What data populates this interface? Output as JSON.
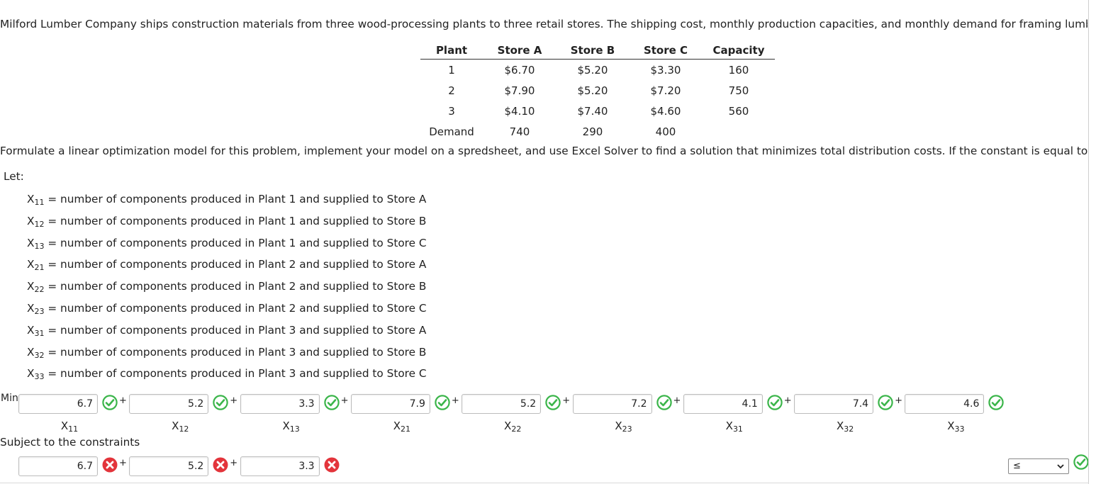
{
  "problem": {
    "intro": "Milford Lumber Company ships construction materials from three wood-processing plants to three retail stores. The shipping cost, monthly production capacities, and monthly demand for framing lumber",
    "instruction": "Formulate a linear optimization model for this problem, implement your model on a spredsheet, and use Excel Solver to find a solution that minimizes total distribution costs. If the constant is equal to or"
  },
  "table": {
    "headers": [
      "Plant",
      "Store A",
      "Store B",
      "Store C",
      "Capacity"
    ],
    "rows": [
      [
        "1",
        "$6.70",
        "$5.20",
        "$3.30",
        "160"
      ],
      [
        "2",
        "$7.90",
        "$5.20",
        "$7.20",
        "750"
      ],
      [
        "3",
        "$4.10",
        "$7.40",
        "$4.60",
        "560"
      ]
    ],
    "demand": [
      "Demand",
      "740",
      "290",
      "400",
      ""
    ]
  },
  "let_label": "Let:",
  "definitions": [
    {
      "var": "X",
      "sub": "11",
      "text": " = number of components produced in Plant 1 and supplied to Store A"
    },
    {
      "var": "X",
      "sub": "12",
      "text": " = number of components produced in Plant 1 and supplied to Store B"
    },
    {
      "var": "X",
      "sub": "13",
      "text": " = number of components produced in Plant 1 and supplied to Store C"
    },
    {
      "var": "X",
      "sub": "21",
      "text": " = number of components produced in Plant 2 and supplied to Store A"
    },
    {
      "var": "X",
      "sub": "22",
      "text": " = number of components produced in Plant 2 and supplied to Store B"
    },
    {
      "var": "X",
      "sub": "23",
      "text": " = number of components produced in Plant 2 and supplied to Store C"
    },
    {
      "var": "X",
      "sub": "31",
      "text": " = number of components produced in Plant 3 and supplied to Store A"
    },
    {
      "var": "X",
      "sub": "32",
      "text": " = number of components produced in Plant 3 and supplied to Store B"
    },
    {
      "var": "X",
      "sub": "33",
      "text": " = number of components produced in Plant 3 and supplied to Store C"
    }
  ],
  "objective": {
    "label": "Min",
    "plus": "+",
    "coefficients": [
      "6.7",
      "5.2",
      "3.3",
      "7.9",
      "5.2",
      "7.2",
      "4.1",
      "7.4",
      "4.6"
    ],
    "var_labels": [
      {
        "var": "X",
        "sub": "11"
      },
      {
        "var": "X",
        "sub": "12"
      },
      {
        "var": "X",
        "sub": "13"
      },
      {
        "var": "X",
        "sub": "21"
      },
      {
        "var": "X",
        "sub": "22"
      },
      {
        "var": "X",
        "sub": "23"
      },
      {
        "var": "X",
        "sub": "31"
      },
      {
        "var": "X",
        "sub": "32"
      },
      {
        "var": "X",
        "sub": "33"
      }
    ],
    "status": [
      "correct",
      "correct",
      "correct",
      "correct",
      "correct",
      "correct",
      "correct",
      "correct",
      "correct"
    ]
  },
  "constraints": {
    "label": "Subject to the constraints",
    "row1": {
      "coefficients": [
        "6.7",
        "5.2",
        "3.3"
      ],
      "status": [
        "incorrect",
        "incorrect",
        "incorrect"
      ],
      "relation": "≤",
      "relation_status": "correct"
    }
  },
  "colors": {
    "correct": "#3bb54a",
    "incorrect": "#e3343b"
  }
}
